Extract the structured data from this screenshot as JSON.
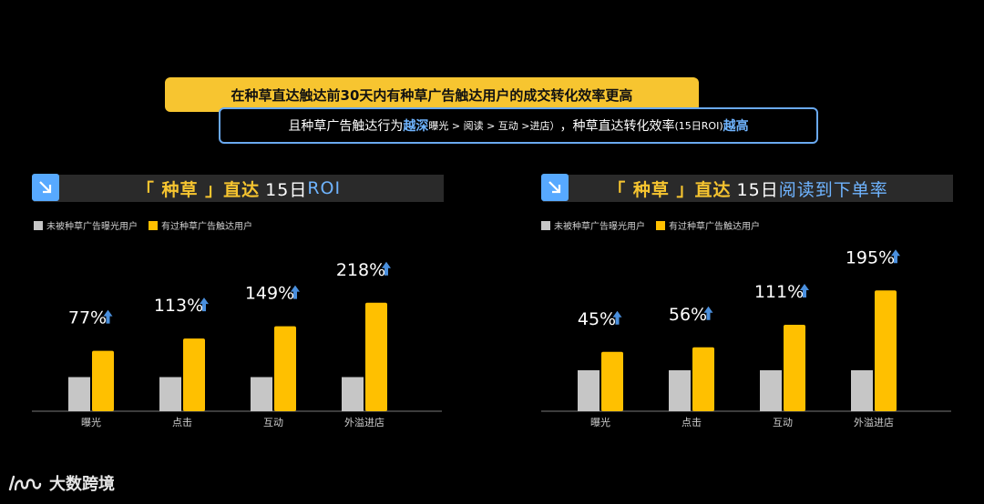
{
  "banner": {
    "title": "在种草直达触达前30天内有种草广告触达用户的成交转化效率更高"
  },
  "subtitle": {
    "part1": "且种草广告触达行为",
    "emph1": "越深",
    "part2": " 曝光 > 阅读 > 互动 >进店）",
    "part3": "，种草直达转化效率",
    "part4": "(15日ROI)",
    "emph2": "越高"
  },
  "footer": {
    "brand": "大数跨境"
  },
  "colors": {
    "gray": "#c6c6c6",
    "yellow": "#ffc000",
    "blue": "#6fb4ff",
    "arrow": "#4a8fdd"
  },
  "chart_data": [
    {
      "type": "bar",
      "title_bracket": "「 种草 」直达",
      "title_num": "15日",
      "title_metric": "ROI",
      "legend": [
        "未被种草广告曝光用户",
        "有过种草广告触达用户"
      ],
      "categories": [
        "曝光",
        "点击",
        "互动",
        "外溢进店"
      ],
      "series": [
        {
          "name": "未被种草广告曝光用户",
          "values": [
            1.0,
            1.0,
            1.0,
            1.0
          ]
        },
        {
          "name": "有过种草广告触达用户",
          "values": [
            1.77,
            2.13,
            2.49,
            3.18
          ]
        }
      ],
      "labels": [
        "77%",
        "113%",
        "149%",
        "218%"
      ]
    },
    {
      "type": "bar",
      "title_bracket": "「 种草 」直达",
      "title_num": "15日",
      "title_metric": "阅读到下单率",
      "legend": [
        "未被种草广告曝光用户",
        "有过种草广告触达用户"
      ],
      "categories": [
        "曝光",
        "点击",
        "互动",
        "外溢进店"
      ],
      "series": [
        {
          "name": "未被种草广告曝光用户",
          "values": [
            1.0,
            1.0,
            1.0,
            1.0
          ]
        },
        {
          "name": "有过种草广告触达用户",
          "values": [
            1.45,
            1.56,
            2.11,
            2.95
          ]
        }
      ],
      "labels": [
        "45%",
        "56%",
        "111%",
        "195%"
      ]
    }
  ]
}
